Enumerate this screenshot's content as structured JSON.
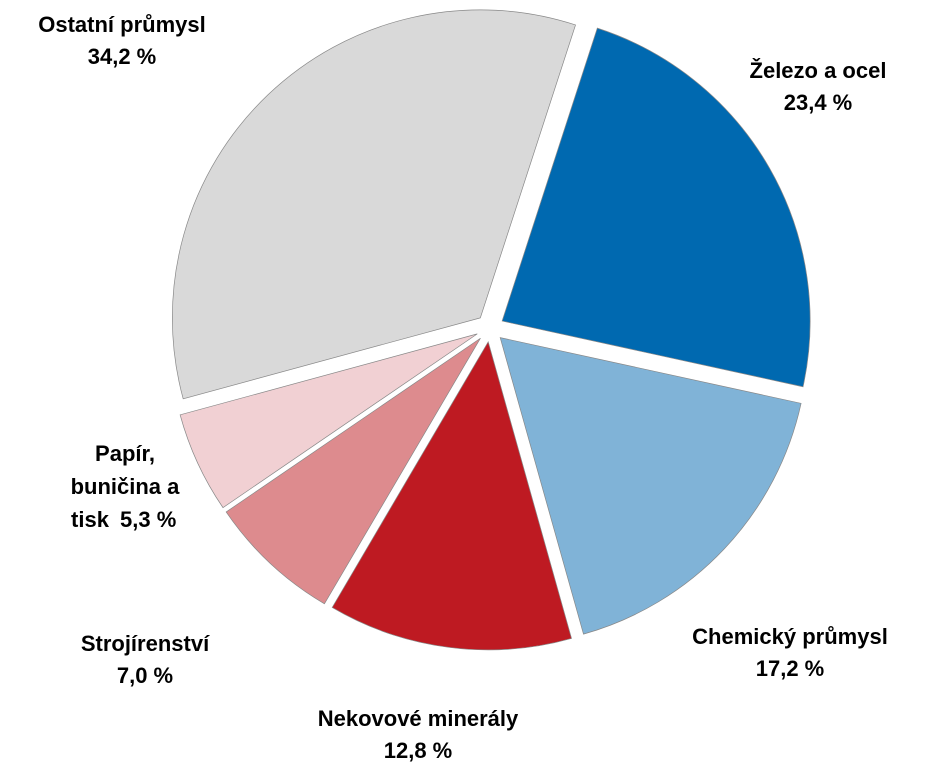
{
  "chart_data": {
    "type": "pie",
    "categories": [
      "Železo a ocel",
      "Chemický průmysl",
      "Nekovové minerály",
      "Strojírenství",
      "Papír, buničina a tisk",
      "Ostatní průmysl"
    ],
    "values": [
      23.4,
      17.2,
      12.8,
      7.0,
      5.3,
      34.2
    ],
    "value_labels": [
      "23,4 %",
      "17,2 %",
      "12,8 %",
      "7,0 %",
      "5,3 %",
      "34,2 %"
    ],
    "colors": [
      "#0069b0",
      "#80b3d7",
      "#be1a22",
      "#dd8b8e",
      "#f1d0d3",
      "#d9d9d9"
    ]
  }
}
